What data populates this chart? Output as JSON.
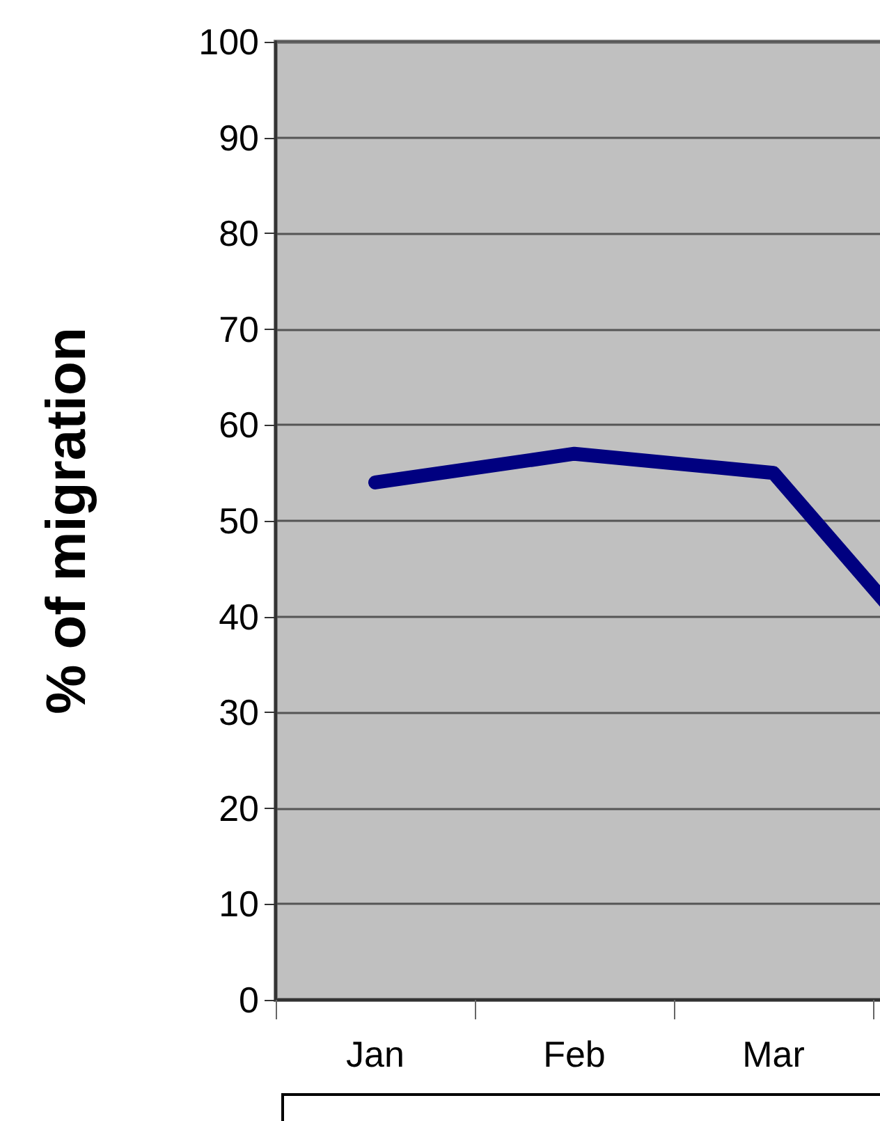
{
  "chart_data": {
    "type": "line",
    "ylabel": "% of migration",
    "categories": [
      "Jan",
      "Feb",
      "Mar",
      null
    ],
    "series": [
      {
        "color": "#000080",
        "values": [
          54,
          57,
          55,
          31
        ]
      }
    ],
    "ylim": [
      0,
      100
    ],
    "yticks": [
      0,
      10,
      20,
      30,
      40,
      50,
      60,
      70,
      80,
      90,
      100
    ],
    "grid": "y",
    "line_style": "solid"
  }
}
